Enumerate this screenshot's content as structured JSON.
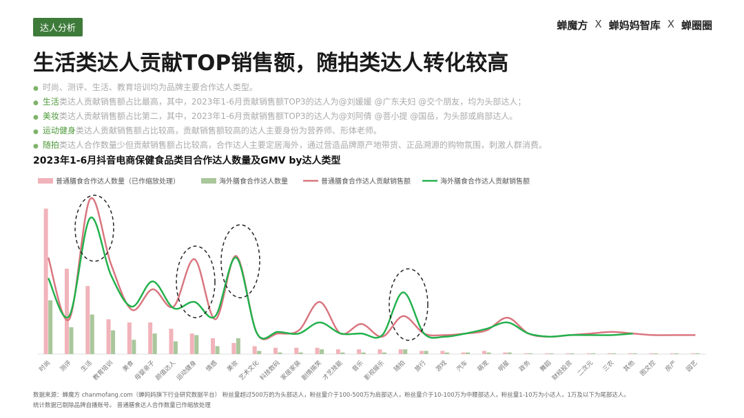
{
  "header": {
    "tag": "达人分析",
    "logos": [
      "蝉魔方",
      "X",
      "蝉妈妈智库",
      "X",
      "蝉圈圈"
    ],
    "title": "生活类达人贡献TOP销售额，随拍类达人转化较高"
  },
  "bullets": [
    {
      "text": "时尚、测评、生活、教育培训均为品牌主要合作达人类型。"
    },
    {
      "highlight": "生活",
      "text": "类达人贡献销售额占比最高，其中，2023年1-6月贡献销售额TOP3的达人为@刘媛媛 @广东夫妇 @交个朋友，均为头部达人；"
    },
    {
      "highlight": "美妆",
      "text": "类达人贡献销售额占比第二，其中，2023年1-6月贡献销售额TOP3的达人为@刘阿倩 @菩小提 @国岳，为头部或肩部达人。"
    },
    {
      "highlight": "运动健身",
      "text": "类达人贡献销售额占比较高，贡献销售额较高的达人主要身份为营养师、形体老师。"
    },
    {
      "highlight": "随拍",
      "text": "类达人合作数量少但贡献销售额占比较高，合作达人主要定居海外，通过营造品牌原产地带货、正品溯源的购物氛围，刺激人群消费。"
    }
  ],
  "chart_data": {
    "type": "combo",
    "title": "2023年1-6月抖音电商保健食品类目合作达人数量及GMV by达人类型",
    "categories": [
      "时尚",
      "测评",
      "生活",
      "教育培训",
      "美食",
      "母婴亲子",
      "颜值达人",
      "运动健身",
      "情感",
      "美妆",
      "艺术文化",
      "科技数码",
      "家居家装",
      "剧情搞笑",
      "才艺技能",
      "音乐",
      "影视娱乐",
      "随拍",
      "旅行",
      "游戏",
      "汽车",
      "萌宠",
      "明星",
      "政务",
      "舞蹈",
      "财经投资",
      "二次元",
      "三农",
      "其他",
      "图文控",
      "房产",
      "园艺"
    ],
    "ylim": [
      0,
      100
    ],
    "series": [
      {
        "name": "普通膳食合作达人数量（已作缩放处理）",
        "type": "bar",
        "color": "#f1b3ba",
        "values": [
          92,
          54,
          43,
          22,
          20,
          20,
          16,
          13,
          10,
          7,
          5,
          4,
          4,
          4,
          3,
          3,
          3,
          3,
          2,
          2,
          1,
          2,
          1,
          0.5,
          0.5,
          0.5,
          0.5,
          0.5,
          0.5,
          0.5,
          0.5,
          0.5
        ]
      },
      {
        "name": "海外膳食合作达人数量",
        "type": "bar",
        "color": "#a9c79b",
        "values": [
          34,
          17,
          25,
          15,
          9,
          13,
          8,
          12,
          5,
          10,
          2,
          1,
          1,
          3,
          1,
          1,
          1,
          3,
          2,
          1,
          1,
          1,
          1,
          0.5,
          0.5,
          0.5,
          0.5,
          0.5,
          0.5,
          0.5,
          0.5,
          0.5
        ]
      },
      {
        "name": "普通膳食合作达人贡献销售额",
        "type": "line",
        "color": "#d9757f",
        "values": [
          61,
          22,
          98,
          57,
          28,
          41,
          30,
          60,
          22,
          62,
          13,
          13,
          15,
          33,
          13,
          19,
          11,
          24,
          13,
          12,
          13,
          15,
          23,
          13,
          11,
          12,
          13,
          14,
          13,
          12,
          12,
          12
        ]
      },
      {
        "name": "海外膳食合作达人贡献销售额",
        "type": "line",
        "color": "#22b14c",
        "values": [
          48,
          24,
          86,
          50,
          30,
          46,
          29,
          33,
          24,
          61,
          13,
          14,
          13,
          20,
          13,
          13,
          12,
          39,
          13,
          11,
          13,
          16,
          20,
          13,
          11,
          12,
          12,
          12,
          13,
          null,
          null,
          null
        ]
      }
    ]
  },
  "footnotes": [
    "数据来源：蝉魔方 chanmofang.com（蝉妈妈旗下行业研究数据平台） 粉丝量超过500万的为头部达人，粉丝量介于100-500万为肩部达人，粉丝量介于10-100万为中腰部达人，粉丝量1-10万为小达人，1万及以下为尾部达人。",
    "统计数据已剔除品牌自播账号。 普通膳食达人合作数量已作缩放处理"
  ]
}
